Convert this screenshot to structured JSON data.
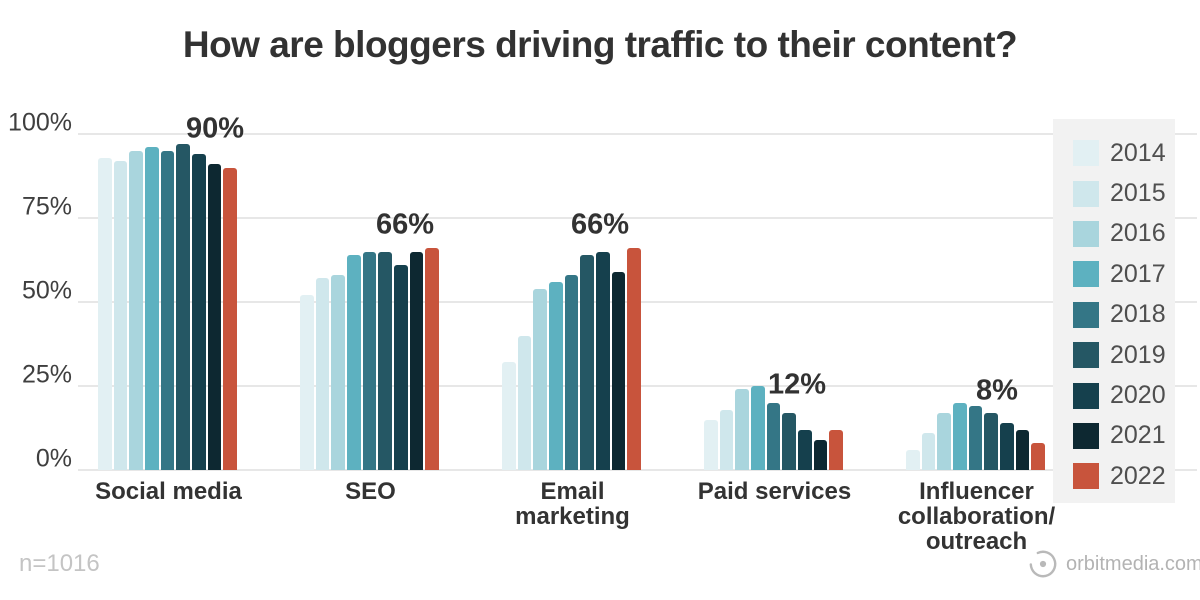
{
  "title": "How are bloggers driving traffic to their content?",
  "footnote": "n=1016",
  "source": "orbitmedia.com",
  "chart_data": {
    "type": "bar",
    "title": "How are bloggers driving traffic to their content?",
    "categories": [
      "Social media",
      "SEO",
      "Email marketing",
      "Paid services",
      "Influencer collaboration/outreach"
    ],
    "category_label_lines": [
      [
        "Social media"
      ],
      [
        "SEO"
      ],
      [
        "Email",
        "marketing"
      ],
      [
        "Paid services"
      ],
      [
        "Influencer",
        "collaboration/",
        "outreach"
      ]
    ],
    "series": [
      {
        "name": "2014",
        "color": "#e2f0f3",
        "values": [
          93,
          52,
          32,
          15,
          6
        ]
      },
      {
        "name": "2015",
        "color": "#cfe7ec",
        "values": [
          92,
          57,
          40,
          18,
          11
        ]
      },
      {
        "name": "2016",
        "color": "#a9d5dd",
        "values": [
          95,
          58,
          54,
          24,
          17
        ]
      },
      {
        "name": "2017",
        "color": "#5db1c0",
        "values": [
          96,
          64,
          56,
          25,
          20
        ]
      },
      {
        "name": "2018",
        "color": "#347686",
        "values": [
          95,
          65,
          58,
          20,
          19
        ]
      },
      {
        "name": "2019",
        "color": "#255764",
        "values": [
          97,
          65,
          64,
          17,
          17
        ]
      },
      {
        "name": "2020",
        "color": "#15404d",
        "values": [
          94,
          61,
          65,
          12,
          14
        ]
      },
      {
        "name": "2021",
        "color": "#0d2831",
        "values": [
          91,
          65,
          59,
          9,
          12
        ]
      },
      {
        "name": "2022",
        "color": "#c8543c",
        "values": [
          90,
          66,
          66,
          12,
          8
        ]
      }
    ],
    "callouts_2022": [
      "90%",
      "66%",
      "66%",
      "12%",
      "8%"
    ],
    "y_ticks": [
      "100%",
      "75%",
      "50%",
      "25%",
      "0%"
    ],
    "ylim": [
      0,
      100
    ],
    "grid": true,
    "legend_position": "right",
    "gridline_color": "#e7e7e7",
    "legend_background": "#f2f2f2"
  }
}
